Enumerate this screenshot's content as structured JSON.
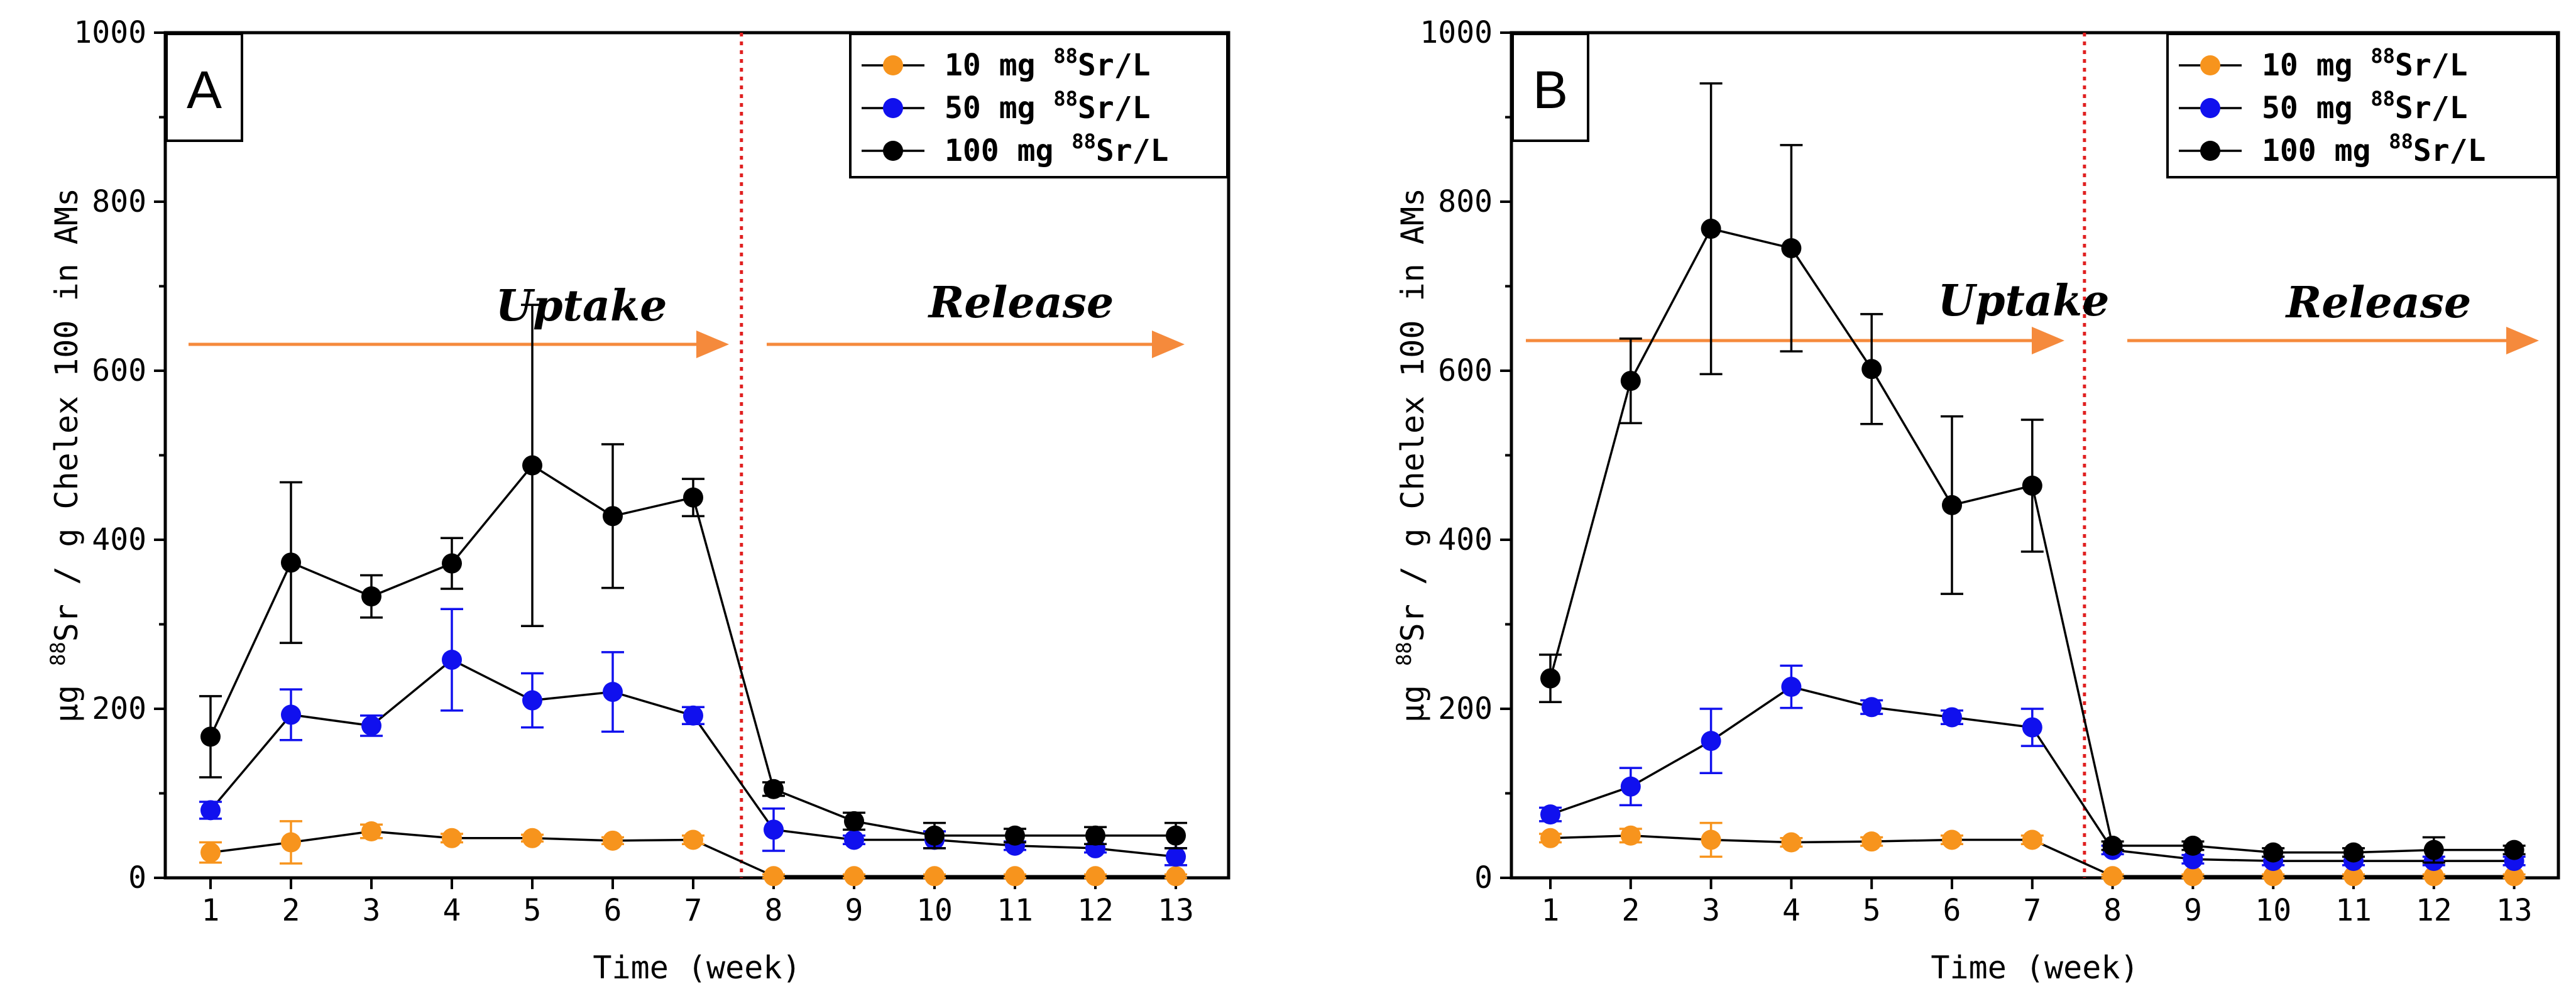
{
  "colors": {
    "series": [
      "#f7941d",
      "#1010ee",
      "#000000"
    ],
    "arrow": "#f58a3c",
    "divider": "#e02020"
  },
  "chart_data": [
    {
      "type": "line",
      "panel": "A",
      "xlabel": "Time (week)",
      "ylabel": "μg ⁸⁸Sr / g Chelex 100 in AMs",
      "ylabel_parts": {
        "pre": "μg ",
        "sup": "88",
        "post": "Sr / g Chelex 100 in AMs"
      },
      "ylim": [
        0,
        1000
      ],
      "yticks": [
        0,
        200,
        400,
        600,
        800,
        1000
      ],
      "x": [
        1,
        2,
        3,
        4,
        5,
        6,
        7,
        8,
        9,
        10,
        11,
        12,
        13
      ],
      "divider_x": 7.6,
      "phases": [
        "Uptake",
        "Release"
      ],
      "legend_position": "top-right",
      "series": [
        {
          "name": "10 mg ⁸⁸Sr/L",
          "name_parts": {
            "pre": "10 mg ",
            "sup": "88",
            "post": "Sr/L"
          },
          "values": [
            30,
            42,
            55,
            47,
            47,
            44,
            45,
            2,
            2,
            2,
            2,
            2,
            2
          ],
          "errors": [
            12,
            25,
            8,
            5,
            4,
            4,
            5,
            2,
            2,
            2,
            2,
            2,
            2
          ]
        },
        {
          "name": "50 mg ⁸⁸Sr/L",
          "name_parts": {
            "pre": "50 mg ",
            "sup": "88",
            "post": "Sr/L"
          },
          "values": [
            80,
            193,
            180,
            258,
            210,
            220,
            192,
            57,
            45,
            45,
            38,
            35,
            25
          ],
          "errors": [
            10,
            30,
            12,
            60,
            32,
            47,
            10,
            25,
            5,
            10,
            5,
            5,
            10
          ]
        },
        {
          "name": "100 mg ⁸⁸Sr/L",
          "name_parts": {
            "pre": "100 mg ",
            "sup": "88",
            "post": "Sr/L"
          },
          "values": [
            167,
            373,
            333,
            372,
            488,
            428,
            450,
            105,
            67,
            50,
            50,
            50,
            50
          ],
          "errors": [
            48,
            95,
            25,
            30,
            190,
            85,
            22,
            8,
            10,
            15,
            8,
            10,
            15
          ]
        }
      ]
    },
    {
      "type": "line",
      "panel": "B",
      "xlabel": "Time (week)",
      "ylabel": "μg ⁸⁸Sr / g Chelex 100 in AMs",
      "ylabel_parts": {
        "pre": "μg ",
        "sup": "88",
        "post": "Sr / g Chelex 100 in AMs"
      },
      "ylim": [
        0,
        1000
      ],
      "yticks": [
        0,
        200,
        400,
        600,
        800,
        1000
      ],
      "x": [
        1,
        2,
        3,
        4,
        5,
        6,
        7,
        8,
        9,
        10,
        11,
        12,
        13
      ],
      "divider_x": 7.65,
      "phases": [
        "Uptake",
        "Release"
      ],
      "legend_position": "top-right",
      "series": [
        {
          "name": "10 mg ⁸⁸Sr/L",
          "name_parts": {
            "pre": "10 mg ",
            "sup": "88",
            "post": "Sr/L"
          },
          "values": [
            47,
            50,
            45,
            42,
            43,
            45,
            45,
            2,
            2,
            2,
            2,
            2,
            2
          ],
          "errors": [
            5,
            8,
            20,
            5,
            5,
            5,
            5,
            2,
            2,
            2,
            2,
            2,
            2
          ]
        },
        {
          "name": "50 mg ⁸⁸Sr/L",
          "name_parts": {
            "pre": "50 mg ",
            "sup": "88",
            "post": "Sr/L"
          },
          "values": [
            75,
            108,
            162,
            226,
            202,
            190,
            178,
            33,
            22,
            20,
            20,
            20,
            20
          ],
          "errors": [
            8,
            22,
            38,
            25,
            8,
            8,
            22,
            5,
            5,
            5,
            5,
            5,
            5
          ]
        },
        {
          "name": "100 mg ⁸⁸Sr/L",
          "name_parts": {
            "pre": "100 mg ",
            "sup": "88",
            "post": "Sr/L"
          },
          "values": [
            236,
            588,
            768,
            745,
            602,
            441,
            464,
            38,
            38,
            30,
            30,
            33,
            33
          ],
          "errors": [
            28,
            50,
            172,
            122,
            65,
            105,
            78,
            5,
            5,
            5,
            5,
            15,
            5
          ]
        }
      ]
    }
  ]
}
